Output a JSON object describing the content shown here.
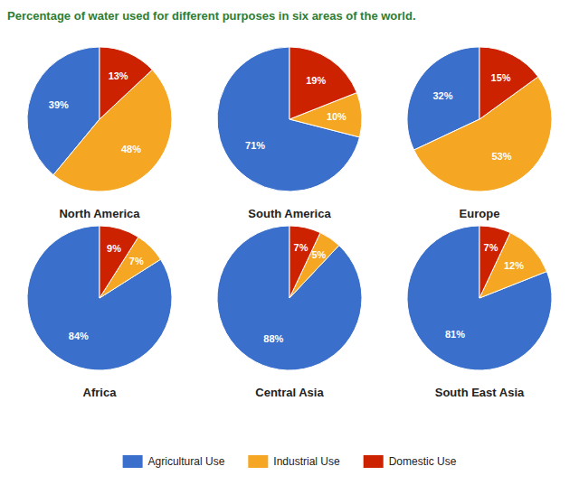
{
  "chart_data": {
    "type": "pie",
    "title": "Percentage of water used for different purposes in six areas of the world.",
    "categories": [
      "Agricultural Use",
      "Industrial Use",
      "Domestic Use"
    ],
    "colors": [
      "#3a6fcc",
      "#f5a623",
      "#cc2200"
    ],
    "series": [
      {
        "name": "North America",
        "values": [
          39,
          48,
          13
        ],
        "value_labels": [
          "39%",
          "48%",
          "13%"
        ]
      },
      {
        "name": "South America",
        "values": [
          71,
          10,
          19
        ],
        "value_labels": [
          "71%",
          "10%",
          "19%"
        ]
      },
      {
        "name": "Europe",
        "values": [
          32,
          53,
          15
        ],
        "value_labels": [
          "32%",
          "53%",
          "15%"
        ]
      },
      {
        "name": "Africa",
        "values": [
          84,
          7,
          9
        ],
        "value_labels": [
          "84%",
          "7%",
          "9%"
        ]
      },
      {
        "name": "Central Asia",
        "values": [
          88,
          5,
          7
        ],
        "value_labels": [
          "88%",
          "5%",
          "7%"
        ]
      },
      {
        "name": "South East Asia",
        "values": [
          81,
          12,
          7
        ],
        "value_labels": [
          "81%",
          "12%",
          "7%"
        ]
      }
    ],
    "data_labels": true,
    "legend": "bottom"
  }
}
